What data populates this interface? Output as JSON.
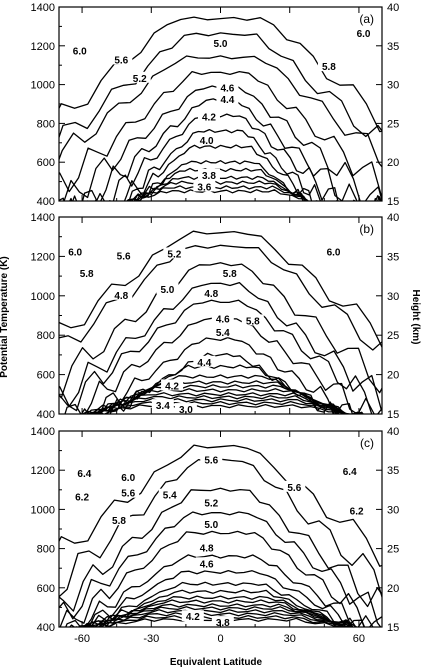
{
  "chart_data": {
    "type": "contour",
    "xlabel": "Equivalent Latitude",
    "ylabel_left": "Potential Temperature (K)",
    "ylabel_right": "Height (km)",
    "x_ticks": [
      -60,
      -30,
      0,
      30,
      60
    ],
    "xlim": [
      -70,
      70
    ],
    "ylim": [
      400,
      1400
    ],
    "y_ticks_left": [
      400,
      600,
      800,
      1000,
      1200,
      1400
    ],
    "y_ticks_right": [
      15,
      20,
      25,
      30,
      35,
      40
    ],
    "panels": [
      {
        "label": "(a)",
        "levels": [
          3.6,
          3.8,
          4.0,
          4.2,
          4.4,
          4.6,
          5.0,
          5.2,
          5.6,
          5.8,
          6.0
        ],
        "contour_labels": [
          {
            "text": "6.0",
            "lat": -61,
            "theta": 1170
          },
          {
            "text": "5.6",
            "lat": -43,
            "theta": 1125
          },
          {
            "text": "5.2",
            "lat": -35,
            "theta": 1030
          },
          {
            "text": "5.0",
            "lat": 0,
            "theta": 1210
          },
          {
            "text": "4.6",
            "lat": 3,
            "theta": 980
          },
          {
            "text": "4.4",
            "lat": 3,
            "theta": 920
          },
          {
            "text": "4.2",
            "lat": -5,
            "theta": 830
          },
          {
            "text": "4.0",
            "lat": -6,
            "theta": 710
          },
          {
            "text": "3.8",
            "lat": -5,
            "theta": 530
          },
          {
            "text": "3.6",
            "lat": -7,
            "theta": 470
          },
          {
            "text": "5.8",
            "lat": 47,
            "theta": 1090
          },
          {
            "text": "6.0",
            "lat": 62,
            "theta": 1260
          }
        ]
      },
      {
        "label": "(b)",
        "levels": [
          3.0,
          3.4,
          4.2,
          4.4,
          4.6,
          4.8,
          5.0,
          5.2,
          5.4,
          5.6,
          5.8,
          6.0
        ],
        "contour_labels": [
          {
            "text": "6.0",
            "lat": -63,
            "theta": 1220
          },
          {
            "text": "5.6",
            "lat": -42,
            "theta": 1200
          },
          {
            "text": "5.8",
            "lat": -58,
            "theta": 1110
          },
          {
            "text": "5.2",
            "lat": -20,
            "theta": 1210
          },
          {
            "text": "4.8",
            "lat": -43,
            "theta": 1000
          },
          {
            "text": "5.0",
            "lat": -23,
            "theta": 1030
          },
          {
            "text": "5.8",
            "lat": 4,
            "theta": 1110
          },
          {
            "text": "4.8",
            "lat": -4,
            "theta": 1010
          },
          {
            "text": "4.6",
            "lat": 1,
            "theta": 880
          },
          {
            "text": "5.4",
            "lat": 1,
            "theta": 810
          },
          {
            "text": "5.8",
            "lat": 14,
            "theta": 870
          },
          {
            "text": "6.0",
            "lat": 49,
            "theta": 1220
          },
          {
            "text": "4.4",
            "lat": -7,
            "theta": 660
          },
          {
            "text": "4.2",
            "lat": -21,
            "theta": 540
          },
          {
            "text": "3.4",
            "lat": -25,
            "theta": 440
          },
          {
            "text": "3.0",
            "lat": -15,
            "theta": 420
          }
        ]
      },
      {
        "label": "(c)",
        "levels": [
          3.8,
          4.2,
          4.6,
          4.8,
          5.0,
          5.2,
          5.4,
          5.6,
          5.8,
          6.0,
          6.2,
          6.4
        ],
        "contour_labels": [
          {
            "text": "6.4",
            "lat": -59,
            "theta": 1180
          },
          {
            "text": "6.0",
            "lat": -40,
            "theta": 1160
          },
          {
            "text": "6.2",
            "lat": -60,
            "theta": 1060
          },
          {
            "text": "5.6",
            "lat": -40,
            "theta": 1080
          },
          {
            "text": "5.4",
            "lat": -22,
            "theta": 1070
          },
          {
            "text": "5.8",
            "lat": -44,
            "theta": 940
          },
          {
            "text": "5.6",
            "lat": -4,
            "theta": 1250
          },
          {
            "text": "5.2",
            "lat": -4,
            "theta": 1030
          },
          {
            "text": "5.0",
            "lat": -4,
            "theta": 920
          },
          {
            "text": "4.8",
            "lat": -6,
            "theta": 800
          },
          {
            "text": "4.6",
            "lat": -6,
            "theta": 720
          },
          {
            "text": "4.2",
            "lat": -12,
            "theta": 450
          },
          {
            "text": "3.8",
            "lat": 1,
            "theta": 420
          },
          {
            "text": "6.4",
            "lat": 56,
            "theta": 1190
          },
          {
            "text": "5.6",
            "lat": 32,
            "theta": 1110
          },
          {
            "text": "6.2",
            "lat": 59,
            "theta": 990
          }
        ]
      }
    ]
  }
}
